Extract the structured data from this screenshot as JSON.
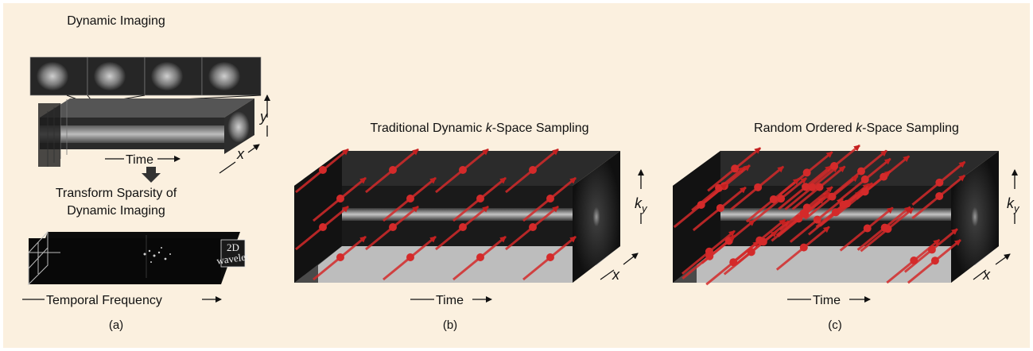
{
  "colors": {
    "background": "#fbf0df",
    "sample_marker": "#d42a2a",
    "panel_dark": "#141414",
    "floor": "#bdbdbd"
  },
  "panel_a": {
    "title": "Dynamic Imaging",
    "time_label": "Time",
    "axis_x": "x",
    "axis_y": "y",
    "sparsity_line1": "Transform Sparsity of",
    "sparsity_line2": "Dynamic Imaging",
    "wavelet_line1": "2D",
    "wavelet_line2": "wavelet",
    "freq_label": "Temporal Frequency",
    "caption": "(a)"
  },
  "panel_b": {
    "title_pre": "Traditional Dynamic ",
    "title_k": "k",
    "title_post": "-Space Sampling",
    "time_label": "Time",
    "axis_k": "k",
    "axis_sub": "y",
    "axis_x": "x",
    "caption": "(b)"
  },
  "panel_c": {
    "title_pre": "Random Ordered ",
    "title_k": "k",
    "title_post": "-Space Sampling",
    "time_label": "Time",
    "axis_k": "k",
    "axis_sub": "y",
    "axis_x": "x",
    "caption": "(c)"
  }
}
